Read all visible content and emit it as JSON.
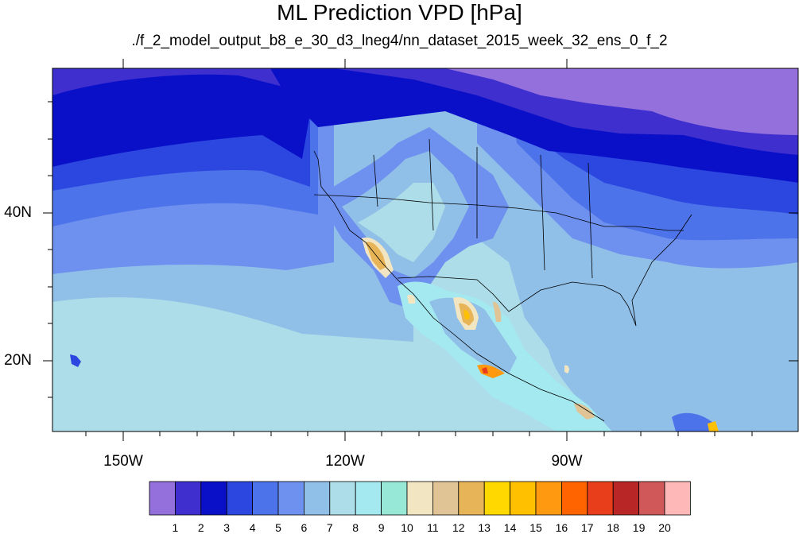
{
  "title": "ML Prediction VPD [hPa]",
  "subtitle": "./f_2_model_output_b8_e_30_d3_lneg4/nn_dataset_2015_week_32_ens_0_f_2",
  "axes": {
    "lon_labels": [
      "150W",
      "120W",
      "90W"
    ],
    "lat_labels": [
      "40N",
      "20N"
    ]
  },
  "colorbar": {
    "labels": [
      "1",
      "2",
      "3",
      "4",
      "5",
      "6",
      "7",
      "8",
      "9",
      "10",
      "11",
      "12",
      "13",
      "14",
      "15",
      "16",
      "17",
      "18",
      "19",
      "20"
    ],
    "colors": [
      "#9370db",
      "#3f2fcf",
      "#0a10c8",
      "#2b47e0",
      "#4d73ea",
      "#6e90ee",
      "#90bfe8",
      "#acdde8",
      "#a4e8f0",
      "#98e8d8",
      "#f2e6c2",
      "#e0c496",
      "#e8b458",
      "#ffd800",
      "#ffc000",
      "#ff9a10",
      "#ff6400",
      "#e83e1c",
      "#b82626",
      "#d05858",
      "#ffb8b8"
    ]
  },
  "map": {
    "regions": "Pacific Ocean, North America, Central America"
  }
}
